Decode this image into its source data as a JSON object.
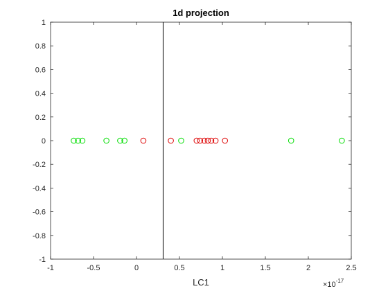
{
  "chart_data": {
    "type": "scatter",
    "title": "1d projection",
    "xlabel": "LC1",
    "ylabel": "",
    "x_exponent_base": "×10",
    "x_exponent_power": "-17",
    "xlim": [
      -1,
      2.5
    ],
    "ylim": [
      -1,
      1
    ],
    "x_ticks": [
      "-1",
      "-0.5",
      "0",
      "0.5",
      "1",
      "1.5",
      "2",
      "2.5"
    ],
    "x_tick_values": [
      -1,
      -0.5,
      0,
      0.5,
      1,
      1.5,
      2,
      2.5
    ],
    "y_ticks": [
      "1",
      "0.8",
      "0.6",
      "0.4",
      "0.2",
      "0",
      "-0.2",
      "-0.4",
      "-0.6",
      "-0.8",
      "-1"
    ],
    "y_tick_values": [
      1,
      0.8,
      0.6,
      0.4,
      0.2,
      0,
      -0.2,
      -0.4,
      -0.6,
      -0.8,
      -1
    ],
    "grid": false,
    "divider_x": 0.31,
    "series": [
      {
        "color": "#00dd00",
        "marker": "circle-open",
        "x": [
          -0.73,
          -0.68,
          -0.63,
          -0.35,
          -0.19,
          -0.14,
          0.52,
          1.8,
          2.39
        ],
        "y": [
          0,
          0,
          0,
          0,
          0,
          0,
          0,
          0,
          0
        ]
      },
      {
        "color": "#dd0000",
        "marker": "circle-open",
        "x": [
          0.08,
          0.4,
          0.7,
          0.74,
          0.79,
          0.83,
          0.87,
          0.92,
          1.03
        ],
        "y": [
          0,
          0,
          0,
          0,
          0,
          0,
          0,
          0,
          0
        ]
      }
    ],
    "divider_color": "#000000"
  }
}
